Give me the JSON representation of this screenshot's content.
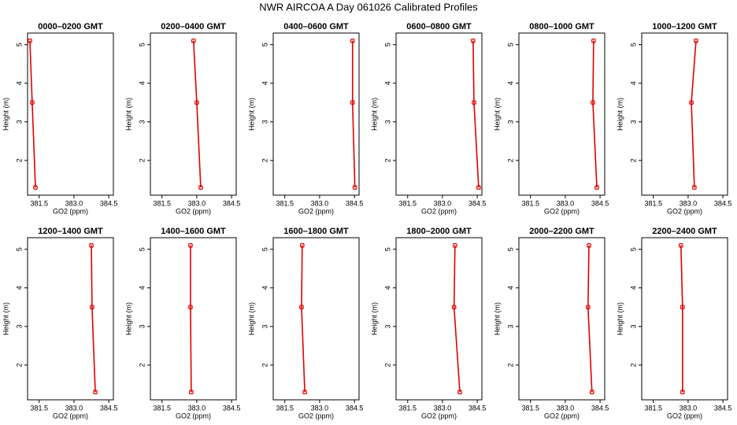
{
  "title": "NWR AIRCOA A  Day 061026  Calibrated Profiles",
  "chart_data": [
    {
      "type": "line",
      "title": "0000–0200 GMT",
      "xlabel": "GO2 (ppm)",
      "ylabel": "Height (m)",
      "xlim": [
        381.0,
        384.7
      ],
      "ylim": [
        1.1,
        5.3
      ],
      "xticks": [
        381.5,
        {
          "value": 383,
          "label": "383.0"
        },
        384.5
      ],
      "yticks": [
        2,
        3,
        4,
        5
      ],
      "series": [
        {
          "color": "#e00000",
          "x": [
            381.1,
            381.2,
            381.34
          ],
          "values": [
            5.1,
            3.5,
            1.3
          ]
        }
      ]
    },
    {
      "type": "line",
      "title": "0200–0400 GMT",
      "xlabel": "GO2 (ppm)",
      "ylabel": "Height (m)",
      "xlim": [
        381.0,
        384.7
      ],
      "ylim": [
        1.1,
        5.3
      ],
      "xticks": [
        381.5,
        {
          "value": 383,
          "label": "383.0"
        },
        384.5
      ],
      "yticks": [
        2,
        3,
        4,
        5
      ],
      "series": [
        {
          "color": "#e00000",
          "x": [
            382.86,
            383.0,
            383.17
          ],
          "values": [
            5.1,
            3.5,
            1.3
          ]
        }
      ]
    },
    {
      "type": "line",
      "title": "0400–0600 GMT",
      "xlabel": "GO2 (ppm)",
      "ylabel": "Height (m)",
      "xlim": [
        381.0,
        384.7
      ],
      "ylim": [
        1.1,
        5.3
      ],
      "xticks": [
        381.5,
        {
          "value": 383,
          "label": "383.0"
        },
        384.5
      ],
      "yticks": [
        2,
        3,
        4,
        5
      ],
      "series": [
        {
          "color": "#e00000",
          "x": [
            384.42,
            384.42,
            384.52
          ],
          "values": [
            5.1,
            3.5,
            1.3
          ]
        }
      ]
    },
    {
      "type": "line",
      "title": "0600–0800 GMT",
      "xlabel": "GO2 (ppm)",
      "ylabel": "Height (m)",
      "xlim": [
        381.0,
        384.7
      ],
      "ylim": [
        1.1,
        5.3
      ],
      "xticks": [
        381.5,
        {
          "value": 383,
          "label": "383.0"
        },
        384.5
      ],
      "yticks": [
        2,
        3,
        4,
        5
      ],
      "series": [
        {
          "color": "#e00000",
          "x": [
            384.32,
            384.36,
            384.56
          ],
          "values": [
            5.1,
            3.5,
            1.3
          ]
        }
      ]
    },
    {
      "type": "line",
      "title": "0800–1000 GMT",
      "xlabel": "GO2 (ppm)",
      "ylabel": "Height (m)",
      "xlim": [
        381.0,
        384.7
      ],
      "ylim": [
        1.1,
        5.3
      ],
      "xticks": [
        381.5,
        {
          "value": 383,
          "label": "383.0"
        },
        384.5
      ],
      "yticks": [
        2,
        3,
        4,
        5
      ],
      "series": [
        {
          "color": "#e00000",
          "x": [
            384.22,
            384.19,
            384.36
          ],
          "values": [
            5.1,
            3.5,
            1.3
          ]
        }
      ]
    },
    {
      "type": "line",
      "title": "1000–1200 GMT",
      "xlabel": "GO2 (ppm)",
      "ylabel": "Height (m)",
      "xlim": [
        381.0,
        384.7
      ],
      "ylim": [
        1.1,
        5.3
      ],
      "xticks": [
        381.5,
        {
          "value": 383,
          "label": "383.0"
        },
        384.5
      ],
      "yticks": [
        2,
        3,
        4,
        5
      ],
      "series": [
        {
          "color": "#e00000",
          "x": [
            383.34,
            383.14,
            383.27
          ],
          "values": [
            5.1,
            3.5,
            1.3
          ]
        }
      ]
    },
    {
      "type": "line",
      "title": "1200–1400 GMT",
      "xlabel": "GO2 (ppm)",
      "ylabel": "Height (m)",
      "xlim": [
        381.0,
        384.7
      ],
      "ylim": [
        1.1,
        5.3
      ],
      "xticks": [
        381.5,
        {
          "value": 383,
          "label": "383.0"
        },
        384.5
      ],
      "yticks": [
        2,
        3,
        4,
        5
      ],
      "series": [
        {
          "color": "#e00000",
          "x": [
            383.75,
            383.78,
            383.92
          ],
          "values": [
            5.1,
            3.5,
            1.3
          ]
        }
      ]
    },
    {
      "type": "line",
      "title": "1400–1600 GMT",
      "xlabel": "GO2 (ppm)",
      "ylabel": "Height (m)",
      "xlim": [
        381.0,
        384.7
      ],
      "ylim": [
        1.1,
        5.3
      ],
      "xticks": [
        381.5,
        {
          "value": 383,
          "label": "383.0"
        },
        384.5
      ],
      "yticks": [
        2,
        3,
        4,
        5
      ],
      "series": [
        {
          "color": "#e00000",
          "x": [
            382.73,
            382.73,
            382.76
          ],
          "values": [
            5.1,
            3.5,
            1.3
          ]
        }
      ]
    },
    {
      "type": "line",
      "title": "1600–1800 GMT",
      "xlabel": "GO2 (ppm)",
      "ylabel": "Height (m)",
      "xlim": [
        381.0,
        384.7
      ],
      "ylim": [
        1.1,
        5.3
      ],
      "xticks": [
        381.5,
        {
          "value": 383,
          "label": "383.0"
        },
        384.5
      ],
      "yticks": [
        2,
        3,
        4,
        5
      ],
      "series": [
        {
          "color": "#e00000",
          "x": [
            382.25,
            382.22,
            382.36
          ],
          "values": [
            5.1,
            3.5,
            1.3
          ]
        }
      ]
    },
    {
      "type": "line",
      "title": "1800–2000 GMT",
      "xlabel": "GO2 (ppm)",
      "ylabel": "Height (m)",
      "xlim": [
        381.0,
        384.7
      ],
      "ylim": [
        1.1,
        5.3
      ],
      "xticks": [
        381.5,
        {
          "value": 383,
          "label": "383.0"
        },
        384.5
      ],
      "yticks": [
        2,
        3,
        4,
        5
      ],
      "series": [
        {
          "color": "#e00000",
          "x": [
            383.54,
            383.5,
            383.75
          ],
          "values": [
            5.1,
            3.5,
            1.3
          ]
        }
      ]
    },
    {
      "type": "line",
      "title": "2000–2200 GMT",
      "xlabel": "GO2 (ppm)",
      "ylabel": "Height (m)",
      "xlim": [
        381.0,
        384.7
      ],
      "ylim": [
        1.1,
        5.3
      ],
      "xticks": [
        381.5,
        {
          "value": 383,
          "label": "383.0"
        },
        384.5
      ],
      "yticks": [
        2,
        3,
        4,
        5
      ],
      "series": [
        {
          "color": "#e00000",
          "x": [
            384.02,
            383.98,
            384.15
          ],
          "values": [
            5.1,
            3.5,
            1.3
          ]
        }
      ]
    },
    {
      "type": "line",
      "title": "2200–2400 GMT",
      "xlabel": "GO2 (ppm)",
      "ylabel": "Height (m)",
      "xlim": [
        381.0,
        384.7
      ],
      "ylim": [
        1.1,
        5.3
      ],
      "xticks": [
        381.5,
        {
          "value": 383,
          "label": "383.0"
        },
        384.5
      ],
      "yticks": [
        2,
        3,
        4,
        5
      ],
      "series": [
        {
          "color": "#e00000",
          "x": [
            382.69,
            382.76,
            382.76
          ],
          "values": [
            5.1,
            3.5,
            1.3
          ]
        }
      ]
    }
  ]
}
